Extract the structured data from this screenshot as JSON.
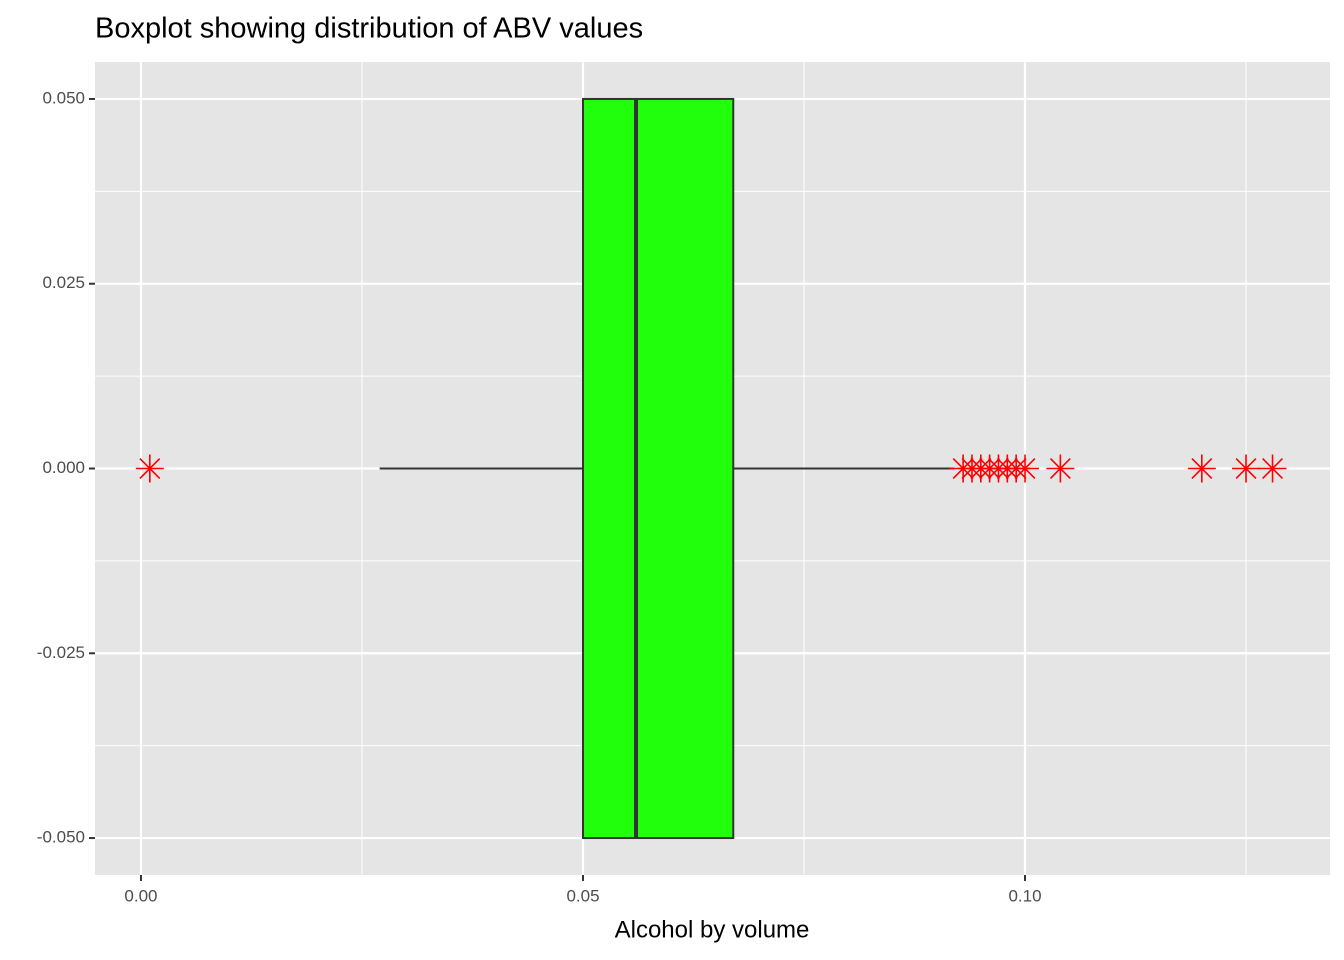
{
  "chart_data": {
    "type": "boxplot",
    "title": "Boxplot showing distribution of ABV values",
    "x_label": "Alcohol by volume",
    "box": {
      "whisker_low": 0.027,
      "q1": 0.05,
      "median": 0.056,
      "q3": 0.067,
      "whisker_high": 0.092
    },
    "outliers": [
      0.001,
      0.093,
      0.094,
      0.095,
      0.096,
      0.097,
      0.098,
      0.099,
      0.1,
      0.104,
      0.12,
      0.125,
      0.128
    ],
    "box_y": [
      -0.05,
      0.05
    ],
    "color": "#22ff0c",
    "outlier_color": "#ff0000",
    "xlim": [
      -0.0052,
      0.1345
    ],
    "ylim": [
      -0.055,
      0.055
    ],
    "xticks": [
      {
        "value": 0,
        "label": "0.00"
      },
      {
        "value": 0.05,
        "label": "0.05"
      },
      {
        "value": 0.1,
        "label": "0.10"
      }
    ],
    "yticks": [
      {
        "value": -0.05,
        "label": "-0.050"
      },
      {
        "value": -0.025,
        "label": "-0.025"
      },
      {
        "value": 0,
        "label": "0.000"
      },
      {
        "value": 0.025,
        "label": "0.025"
      },
      {
        "value": 0.05,
        "label": "0.050"
      }
    ],
    "x_minor_ticks": [
      0.025,
      0.075,
      0.125
    ],
    "y_minor_ticks": [
      -0.0375,
      -0.0125,
      0.0125,
      0.0375
    ],
    "grid": true
  }
}
